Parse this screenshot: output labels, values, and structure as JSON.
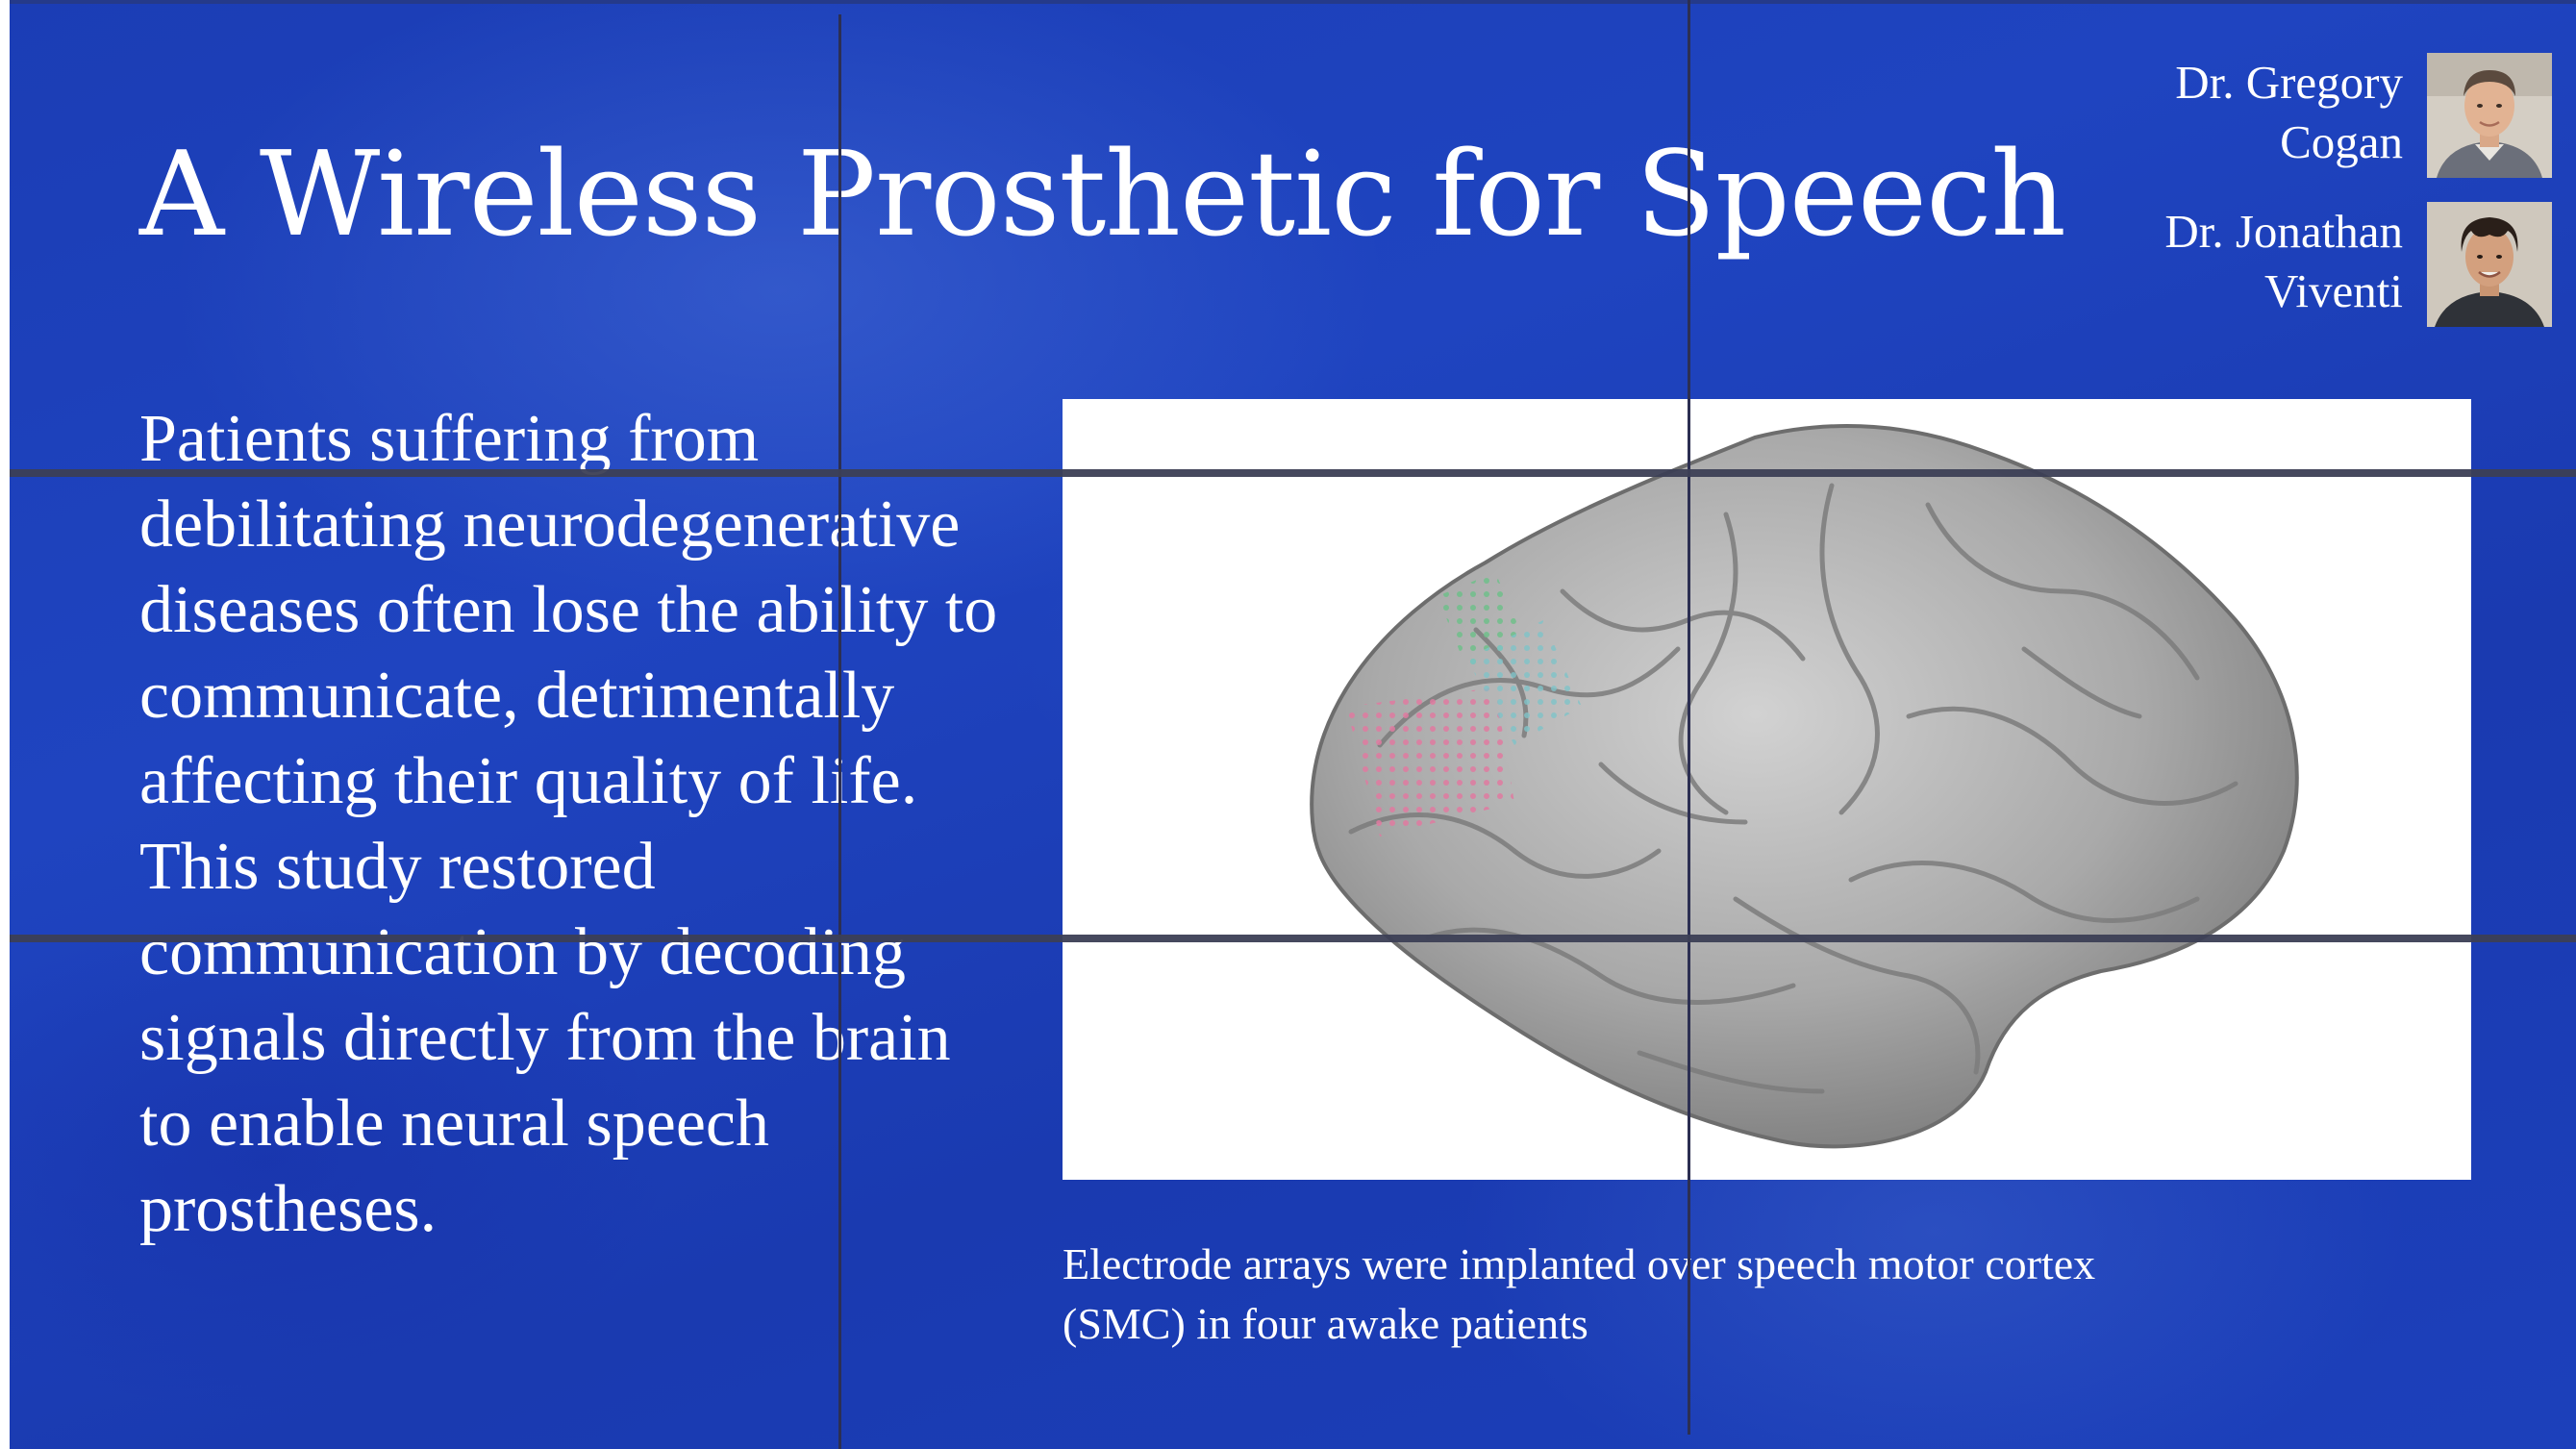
{
  "slide": {
    "title": "A Wireless Prosthetic for Speech",
    "body_lines": [
      "Patients suffering from",
      "debilitating neurodegenerative",
      "diseases often lose the ability to",
      "communicate, detrimentally",
      "affecting their quality of life.",
      "This study restored",
      "communication by decoding",
      "signals directly from the brain",
      "to enable neural speech",
      "prostheses."
    ],
    "authors": [
      {
        "name_line1": "Dr. Gregory",
        "name_line2": "Cogan",
        "photo_icon": "portrait-photo"
      },
      {
        "name_line1": "Dr. Jonathan",
        "name_line2": "Viventi",
        "photo_icon": "portrait-photo"
      }
    ],
    "figure": {
      "image_icon": "brain-electrode-illustration"
    },
    "caption_lines": [
      "Electrode arrays were implanted over speech motor cortex",
      "(SMC) in four awake patients"
    ]
  },
  "colors": {
    "background": "#1f44c0",
    "text": "#ffffff",
    "guide_lines": "#2c2f52",
    "electrode_pink": "#e07aa0",
    "electrode_teal": "#7fc3c8",
    "electrode_green": "#6fbf8a"
  }
}
